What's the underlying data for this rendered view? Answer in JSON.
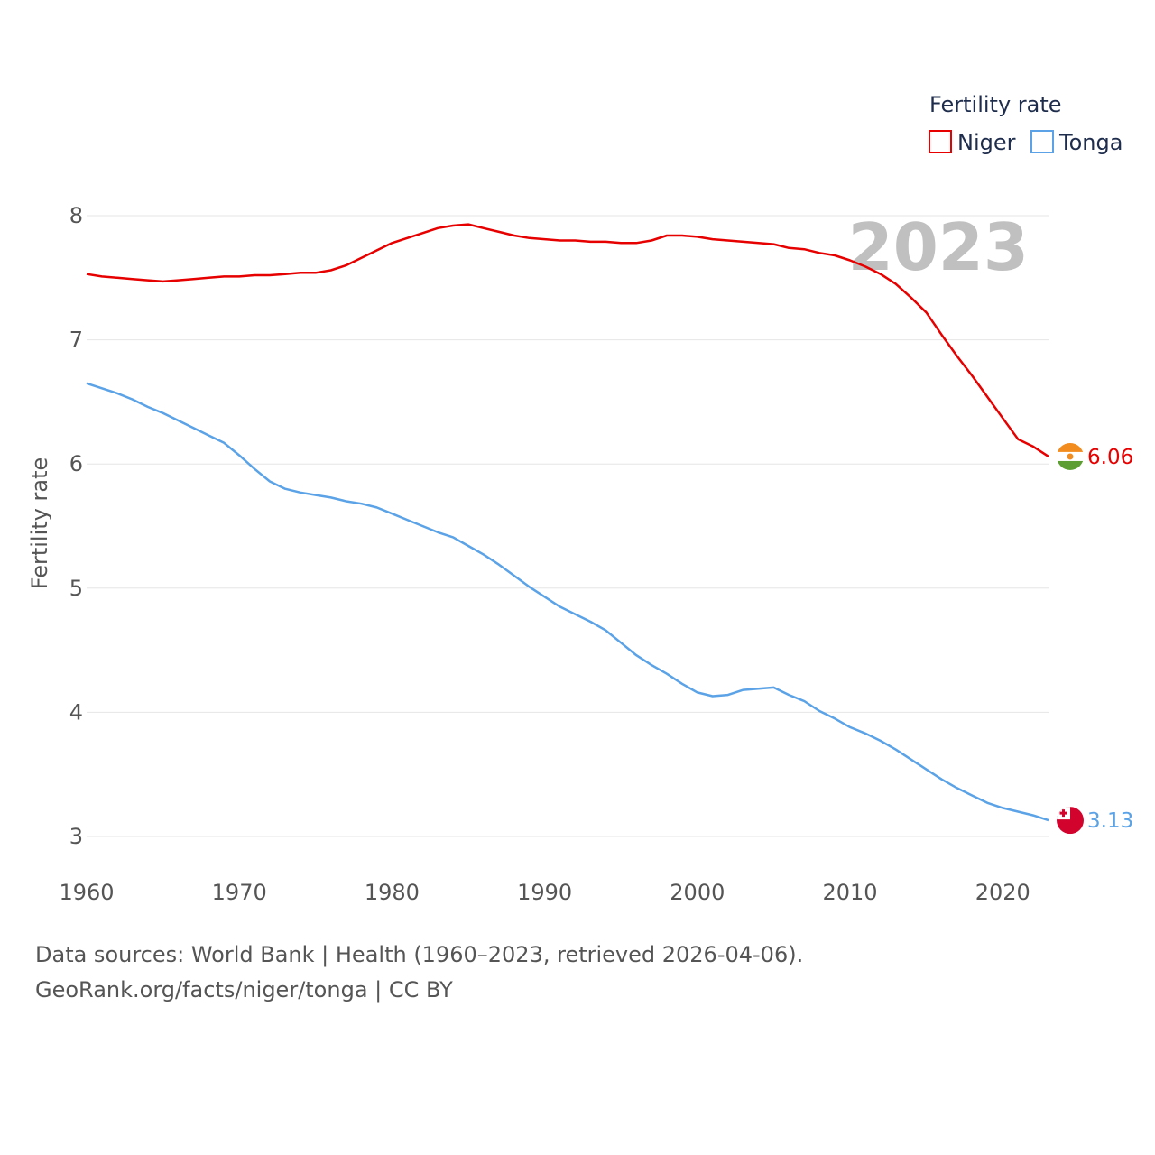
{
  "chart_data": {
    "type": "line",
    "ylabel": "Fertility rate",
    "xlabel": "",
    "xlim": [
      1960,
      2023
    ],
    "ylim": [
      3,
      8
    ],
    "yticks": [
      3,
      4,
      5,
      6,
      7,
      8
    ],
    "xticks": [
      1960,
      1970,
      1980,
      1990,
      2000,
      2010,
      2020
    ],
    "grid": true,
    "year_label": "2023",
    "legend": {
      "title": "Fertility rate",
      "position": "top-right"
    },
    "x": [
      1960,
      1961,
      1962,
      1963,
      1964,
      1965,
      1966,
      1967,
      1968,
      1969,
      1970,
      1971,
      1972,
      1973,
      1974,
      1975,
      1976,
      1977,
      1978,
      1979,
      1980,
      1981,
      1982,
      1983,
      1984,
      1985,
      1986,
      1987,
      1988,
      1989,
      1990,
      1991,
      1992,
      1993,
      1994,
      1995,
      1996,
      1997,
      1998,
      1999,
      2000,
      2001,
      2002,
      2003,
      2004,
      2005,
      2006,
      2007,
      2008,
      2009,
      2010,
      2011,
      2012,
      2013,
      2014,
      2015,
      2016,
      2017,
      2018,
      2019,
      2020,
      2021,
      2022,
      2023
    ],
    "series": [
      {
        "name": "Niger",
        "color": "#e60000",
        "end_label": "6.06",
        "flag": "niger-flag",
        "values": [
          7.53,
          7.51,
          7.5,
          7.49,
          7.48,
          7.47,
          7.48,
          7.49,
          7.5,
          7.51,
          7.51,
          7.52,
          7.52,
          7.53,
          7.54,
          7.54,
          7.56,
          7.6,
          7.66,
          7.72,
          7.78,
          7.82,
          7.86,
          7.9,
          7.92,
          7.93,
          7.9,
          7.87,
          7.84,
          7.82,
          7.81,
          7.8,
          7.8,
          7.79,
          7.79,
          7.78,
          7.78,
          7.8,
          7.84,
          7.84,
          7.83,
          7.81,
          7.8,
          7.79,
          7.78,
          7.77,
          7.74,
          7.73,
          7.7,
          7.68,
          7.64,
          7.59,
          7.53,
          7.45,
          7.34,
          7.22,
          7.04,
          6.87,
          6.71,
          6.54,
          6.37,
          6.2,
          6.14,
          6.06
        ]
      },
      {
        "name": "Tonga",
        "color": "#5ba3e6",
        "end_label": "3.13",
        "flag": "tonga-flag",
        "values": [
          6.65,
          6.61,
          6.57,
          6.52,
          6.46,
          6.41,
          6.35,
          6.29,
          6.23,
          6.17,
          6.07,
          5.96,
          5.86,
          5.8,
          5.77,
          5.75,
          5.73,
          5.7,
          5.68,
          5.65,
          5.6,
          5.55,
          5.5,
          5.45,
          5.41,
          5.34,
          5.27,
          5.19,
          5.1,
          5.01,
          4.93,
          4.85,
          4.79,
          4.73,
          4.66,
          4.56,
          4.46,
          4.38,
          4.31,
          4.23,
          4.16,
          4.13,
          4.14,
          4.18,
          4.19,
          4.2,
          4.14,
          4.09,
          4.01,
          3.95,
          3.88,
          3.83,
          3.77,
          3.7,
          3.62,
          3.54,
          3.46,
          3.39,
          3.33,
          3.27,
          3.23,
          3.2,
          3.17,
          3.13
        ]
      }
    ]
  },
  "footer": {
    "line1": "Data sources: World Bank | Health (1960–2023, retrieved 2026-04-06).",
    "line2": "GeoRank.org/facts/niger/tonga | CC BY"
  }
}
